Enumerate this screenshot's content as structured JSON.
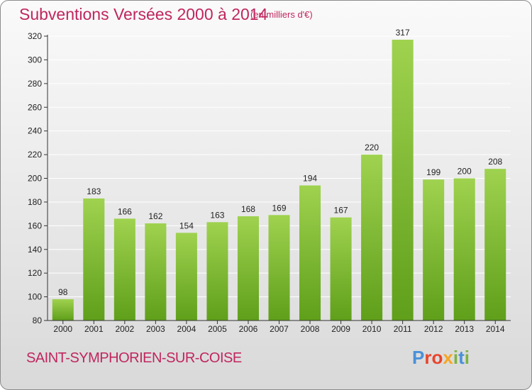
{
  "header": {
    "title": "Subventions Versées 2000 à 2014",
    "subtitle": "(en milliers d'€)"
  },
  "footer": {
    "commune": "SAINT-SYMPHORIEN-SUR-COISE",
    "logo_text": "Proxiti",
    "logo_colors": [
      "#4a90d9",
      "#e8452c",
      "#e8452c",
      "#f5a623",
      "#7cb342",
      "#4a90d9",
      "#7cb342"
    ]
  },
  "colors": {
    "title": "#c0265e",
    "bar_light": "#9fd24f",
    "bar_dark": "#5f9f1a",
    "grid": "#ffffff"
  },
  "chart_data": {
    "type": "bar",
    "title": "Subventions Versées 2000 à 2014",
    "subtitle": "(en milliers d'€)",
    "categories": [
      "2000",
      "2001",
      "2002",
      "2003",
      "2004",
      "2005",
      "2006",
      "2007",
      "2008",
      "2009",
      "2010",
      "2011",
      "2012",
      "2013",
      "2014"
    ],
    "values": [
      98,
      183,
      166,
      162,
      154,
      163,
      168,
      169,
      194,
      167,
      220,
      317,
      199,
      200,
      208
    ],
    "ylim": [
      80,
      320
    ],
    "yticks": [
      80,
      100,
      120,
      140,
      160,
      180,
      200,
      220,
      240,
      260,
      280,
      300,
      320
    ],
    "grid": true,
    "data_labels": true
  }
}
